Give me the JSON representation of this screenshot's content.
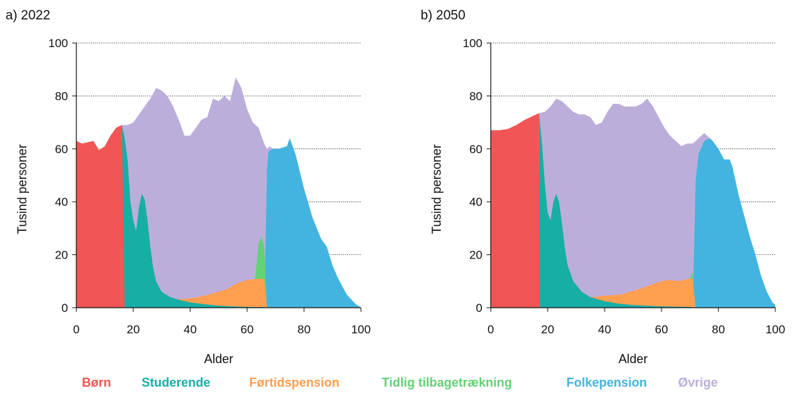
{
  "colors": {
    "born": "#f25555",
    "studerende": "#17aea6",
    "fortidspension": "#ff9f4f",
    "tidlig": "#63d176",
    "folkepension": "#43b4e0",
    "ovrige": "#bcaedb"
  },
  "legend": [
    {
      "key": "born",
      "label": "Børn"
    },
    {
      "key": "studerende",
      "label": "Studerende"
    },
    {
      "key": "fortidspension",
      "label": "Førtidspension"
    },
    {
      "key": "tidlig",
      "label": "Tidlig tilbagetrækning"
    },
    {
      "key": "folkepension",
      "label": "Folkepension"
    },
    {
      "key": "ovrige",
      "label": "Øvrige"
    }
  ],
  "chart_data": [
    {
      "type": "area",
      "stacked": true,
      "title": "a) 2022",
      "xlabel": "Alder",
      "ylabel": "Tusind personer",
      "xlim": [
        0,
        100
      ],
      "ylim": [
        0,
        100
      ],
      "xticks": [
        "0",
        "20",
        "40",
        "60",
        "80",
        "100"
      ],
      "yticks": [
        "0",
        "20",
        "40",
        "60",
        "80",
        "100"
      ],
      "grid": "horizontal dotted",
      "series": [
        {
          "key": "born",
          "name": "Børn",
          "points": [
            [
              0,
              63
            ],
            [
              2,
              62
            ],
            [
              4,
              62.5
            ],
            [
              6,
              63
            ],
            [
              8,
              59.5
            ],
            [
              10,
              61
            ],
            [
              12,
              65
            ],
            [
              14,
              68
            ],
            [
              16,
              69
            ],
            [
              17,
              0
            ]
          ]
        },
        {
          "key": "studerende",
          "name": "Studerende",
          "points": [
            [
              16,
              69
            ],
            [
              17,
              64
            ],
            [
              18,
              56
            ],
            [
              19,
              40
            ],
            [
              20,
              33
            ],
            [
              21,
              29
            ],
            [
              22,
              38
            ],
            [
              23,
              43
            ],
            [
              24,
              41
            ],
            [
              25,
              33
            ],
            [
              26,
              23
            ],
            [
              27,
              15
            ],
            [
              28,
              10
            ],
            [
              30,
              6
            ],
            [
              33,
              4
            ],
            [
              36,
              3
            ],
            [
              40,
              2
            ],
            [
              45,
              1.3
            ],
            [
              50,
              0.8
            ],
            [
              55,
              0.5
            ],
            [
              60,
              0.3
            ],
            [
              66,
              0.2
            ],
            [
              67,
              0
            ]
          ]
        },
        {
          "key": "fortidspension",
          "name": "Førtidspension",
          "points": [
            [
              23,
              0
            ],
            [
              25,
              0.5
            ],
            [
              28,
              1.5
            ],
            [
              31,
              2.5
            ],
            [
              34,
              3
            ],
            [
              40,
              3.5
            ],
            [
              45,
              4.5
            ],
            [
              50,
              6
            ],
            [
              53,
              7
            ],
            [
              56,
              9
            ],
            [
              60,
              10.5
            ],
            [
              65,
              11
            ],
            [
              66,
              11
            ],
            [
              67,
              0
            ]
          ]
        },
        {
          "key": "tidlig",
          "name": "Tidlig tilbagetrækning",
          "points": [
            [
              60,
              0
            ],
            [
              61,
              3
            ],
            [
              62,
              7
            ],
            [
              63,
              13
            ],
            [
              64,
              24
            ],
            [
              65,
              27
            ],
            [
              66,
              23
            ],
            [
              67,
              0
            ]
          ]
        },
        {
          "key": "folkepension",
          "name": "Folkepension",
          "points": [
            [
              66,
              0
            ],
            [
              67,
              52
            ],
            [
              67.5,
              59
            ],
            [
              69,
              60
            ],
            [
              71,
              60
            ],
            [
              74,
              61
            ],
            [
              75,
              64
            ],
            [
              77,
              58
            ],
            [
              80,
              45
            ],
            [
              83,
              34
            ],
            [
              86,
              26
            ],
            [
              88,
              23
            ],
            [
              90,
              16
            ],
            [
              92,
              11
            ],
            [
              95,
              5
            ],
            [
              98,
              1.5
            ],
            [
              100,
              0
            ]
          ]
        },
        {
          "key": "ovrige",
          "name": "Øvrige",
          "points": [
            [
              16,
              69
            ],
            [
              18,
              69
            ],
            [
              20,
              70
            ],
            [
              22,
              73
            ],
            [
              24,
              76
            ],
            [
              26,
              79
            ],
            [
              28,
              83
            ],
            [
              30,
              82
            ],
            [
              32,
              80
            ],
            [
              34,
              76
            ],
            [
              36,
              71
            ],
            [
              38,
              65
            ],
            [
              40,
              65
            ],
            [
              42,
              68
            ],
            [
              44,
              71
            ],
            [
              46,
              72
            ],
            [
              48,
              79
            ],
            [
              50,
              78
            ],
            [
              52,
              80
            ],
            [
              54,
              78
            ],
            [
              56,
              87
            ],
            [
              58,
              83
            ],
            [
              60,
              75
            ],
            [
              62,
              70
            ],
            [
              64,
              68
            ],
            [
              66,
              62
            ],
            [
              67,
              60
            ],
            [
              68,
              61
            ],
            [
              70,
              59
            ],
            [
              72,
              60
            ],
            [
              74,
              61
            ],
            [
              75,
              64
            ]
          ]
        }
      ]
    },
    {
      "type": "area",
      "stacked": true,
      "title": "b) 2050",
      "xlabel": "Alder",
      "ylabel": "Tusind personer",
      "xlim": [
        0,
        100
      ],
      "ylim": [
        0,
        100
      ],
      "xticks": [
        "0",
        "20",
        "40",
        "60",
        "80",
        "100"
      ],
      "yticks": [
        "0",
        "20",
        "40",
        "60",
        "80",
        "100"
      ],
      "grid": "horizontal dotted",
      "series": [
        {
          "key": "born",
          "name": "Børn",
          "points": [
            [
              0,
              67
            ],
            [
              3,
              67
            ],
            [
              6,
              67.5
            ],
            [
              9,
              69
            ],
            [
              12,
              71
            ],
            [
              15,
              72.5
            ],
            [
              17,
              73.5
            ],
            [
              17.2,
              0
            ]
          ]
        },
        {
          "key": "studerende",
          "name": "Studerende",
          "points": [
            [
              17,
              73.5
            ],
            [
              18,
              62
            ],
            [
              19,
              47
            ],
            [
              20,
              36
            ],
            [
              21,
              33
            ],
            [
              22,
              40
            ],
            [
              23,
              43
            ],
            [
              24,
              40
            ],
            [
              25,
              32
            ],
            [
              26,
              23
            ],
            [
              27,
              16
            ],
            [
              29,
              10
            ],
            [
              32,
              6
            ],
            [
              35,
              4
            ],
            [
              40,
              2.5
            ],
            [
              45,
              1.5
            ],
            [
              50,
              1
            ],
            [
              60,
              0.5
            ],
            [
              70,
              0.3
            ],
            [
              72,
              0
            ]
          ]
        },
        {
          "key": "fortidspension",
          "name": "Førtidspension",
          "points": [
            [
              23,
              0
            ],
            [
              25,
              0.5
            ],
            [
              28,
              1.5
            ],
            [
              32,
              3
            ],
            [
              36,
              4
            ],
            [
              40,
              4.5
            ],
            [
              46,
              5
            ],
            [
              52,
              7
            ],
            [
              56,
              8.5
            ],
            [
              60,
              10
            ],
            [
              63,
              10.5
            ],
            [
              66,
              10
            ],
            [
              70,
              11
            ],
            [
              71,
              11
            ],
            [
              72,
              0
            ]
          ]
        },
        {
          "key": "tidlig",
          "name": "Tidlig tilbagetrækning",
          "points": [
            [
              64,
              0
            ],
            [
              65,
              3
            ],
            [
              66,
              4
            ],
            [
              67,
              3
            ],
            [
              68,
              4
            ],
            [
              69,
              6
            ],
            [
              70,
              11
            ],
            [
              71,
              14
            ],
            [
              71.5,
              0
            ]
          ]
        },
        {
          "key": "folkepension",
          "name": "Folkepension",
          "points": [
            [
              71,
              0
            ],
            [
              72,
              48
            ],
            [
              73,
              58
            ],
            [
              75,
              63
            ],
            [
              77,
              64
            ],
            [
              78,
              63
            ],
            [
              80,
              60
            ],
            [
              82,
              56
            ],
            [
              84,
              56
            ],
            [
              85,
              53
            ],
            [
              87,
              43
            ],
            [
              89,
              35
            ],
            [
              91,
              27
            ],
            [
              93,
              20
            ],
            [
              95,
              12
            ],
            [
              97,
              6
            ],
            [
              99,
              2
            ],
            [
              100,
              1
            ]
          ]
        },
        {
          "key": "ovrige",
          "name": "Øvrige",
          "points": [
            [
              17,
              73.5
            ],
            [
              19,
              74
            ],
            [
              21,
              76
            ],
            [
              23,
              79
            ],
            [
              25,
              78
            ],
            [
              27,
              76
            ],
            [
              29,
              74
            ],
            [
              31,
              73
            ],
            [
              33,
              73
            ],
            [
              35,
              72
            ],
            [
              37,
              69
            ],
            [
              39,
              70
            ],
            [
              41,
              74
            ],
            [
              43,
              77
            ],
            [
              45,
              77
            ],
            [
              47,
              76
            ],
            [
              49,
              76
            ],
            [
              51,
              76
            ],
            [
              53,
              77
            ],
            [
              55,
              79
            ],
            [
              57,
              76
            ],
            [
              59,
              72
            ],
            [
              61,
              68
            ],
            [
              63,
              65
            ],
            [
              65,
              63
            ],
            [
              67,
              61
            ],
            [
              69,
              62
            ],
            [
              71,
              62
            ],
            [
              73,
              64
            ],
            [
              75,
              66
            ],
            [
              77,
              64
            ]
          ]
        }
      ]
    }
  ]
}
